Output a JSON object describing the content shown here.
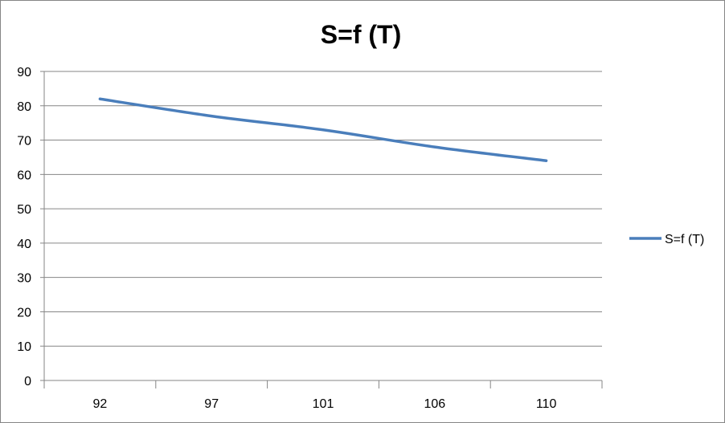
{
  "chart_data": {
    "type": "line",
    "title": "S=f (T)",
    "categories": [
      "92",
      "97",
      "101",
      "106",
      "110"
    ],
    "series": [
      {
        "name": "S=f (T)",
        "values": [
          82,
          77,
          73,
          68,
          64
        ],
        "color": "#4a7ebb"
      }
    ],
    "ylim": [
      0,
      90
    ],
    "yticks": [
      0,
      10,
      20,
      30,
      40,
      50,
      60,
      70,
      80,
      90
    ],
    "grid": "horizontal",
    "legend_position": "right"
  }
}
